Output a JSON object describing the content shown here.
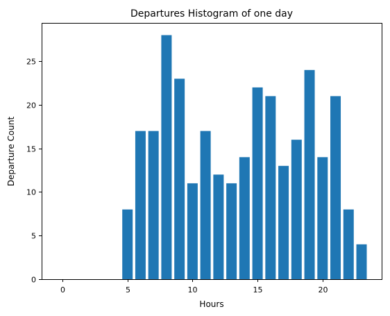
{
  "chart_data": {
    "type": "bar",
    "title": "Departures Histogram of one day",
    "xlabel": "Hours",
    "ylabel": "Departure Count",
    "x": [
      0,
      1,
      2,
      3,
      4,
      5,
      6,
      7,
      8,
      9,
      10,
      11,
      12,
      13,
      14,
      15,
      16,
      17,
      18,
      19,
      20,
      21,
      22,
      23
    ],
    "values": [
      0,
      0,
      0,
      0,
      0,
      8,
      17,
      17,
      28,
      23,
      11,
      17,
      12,
      11,
      14,
      22,
      21,
      13,
      16,
      24,
      14,
      21,
      8,
      4
    ],
    "xlim": [
      -1.6,
      24.6
    ],
    "ylim": [
      0,
      29.4
    ],
    "xticks": [
      0,
      5,
      10,
      15,
      20
    ],
    "yticks": [
      0,
      5,
      10,
      15,
      20,
      25
    ],
    "bar_color": "#1f77b4",
    "grid": false,
    "legend": "none"
  }
}
